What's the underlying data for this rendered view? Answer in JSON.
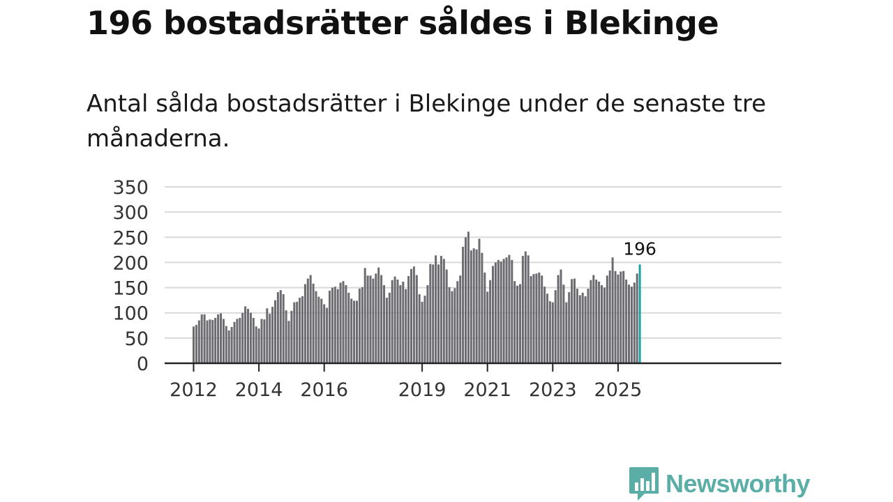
{
  "title": "196 bostadsrätter såldes i Blekinge",
  "subtitle": "Antal sålda bostadsrätter i Blekinge under de senaste tre månaderna.",
  "brand": {
    "name": "Newsworthy",
    "color": "#5aaea6"
  },
  "colors": {
    "bar": "#6b6b70",
    "highlight": "#1ba3a3",
    "grid": "#d9d9d9",
    "axis": "#222222"
  },
  "chart_data": {
    "type": "bar",
    "title": "",
    "xlabel": "",
    "ylabel": "",
    "ylim": [
      0,
      350
    ],
    "yticks": [
      0,
      50,
      100,
      150,
      200,
      250,
      300,
      350
    ],
    "x_tick_labels": [
      {
        "label": "2012",
        "year": 2012
      },
      {
        "label": "2014",
        "year": 2014
      },
      {
        "label": "2016",
        "year": 2016
      },
      {
        "label": "2019",
        "year": 2019
      },
      {
        "label": "2021",
        "year": 2021
      },
      {
        "label": "2023",
        "year": 2023
      },
      {
        "label": "2025",
        "year": 2025
      }
    ],
    "start": {
      "year": 2012,
      "month": 1
    },
    "series": [
      {
        "name": "Sålda bostadsrätter",
        "values": [
          73,
          76,
          85,
          97,
          97,
          85,
          87,
          86,
          90,
          97,
          99,
          88,
          74,
          65,
          72,
          82,
          88,
          90,
          100,
          113,
          108,
          100,
          90,
          73,
          69,
          88,
          87,
          109,
          98,
          112,
          125,
          141,
          145,
          137,
          105,
          84,
          104,
          121,
          122,
          130,
          133,
          157,
          168,
          175,
          158,
          143,
          132,
          128,
          117,
          110,
          144,
          150,
          152,
          147,
          160,
          163,
          155,
          140,
          128,
          124,
          124,
          148,
          151,
          189,
          174,
          174,
          168,
          178,
          190,
          175,
          155,
          130,
          140,
          165,
          172,
          166,
          155,
          162,
          147,
          173,
          187,
          192,
          175,
          137,
          122,
          134,
          155,
          197,
          196,
          214,
          196,
          213,
          207,
          186,
          151,
          143,
          149,
          163,
          174,
          231,
          250,
          261,
          224,
          228,
          226,
          247,
          219,
          180,
          142,
          165,
          193,
          200,
          205,
          202,
          207,
          210,
          215,
          205,
          163,
          154,
          157,
          213,
          222,
          214,
          173,
          177,
          178,
          180,
          174,
          152,
          138,
          123,
          121,
          145,
          175,
          186,
          156,
          121,
          141,
          167,
          168,
          148,
          135,
          140,
          133,
          148,
          165,
          175,
          166,
          162,
          155,
          150,
          174,
          184,
          210,
          183,
          176,
          182,
          183,
          166,
          156,
          152,
          160,
          178,
          196
        ]
      }
    ],
    "annotation": {
      "label": "196",
      "value": 196
    }
  }
}
